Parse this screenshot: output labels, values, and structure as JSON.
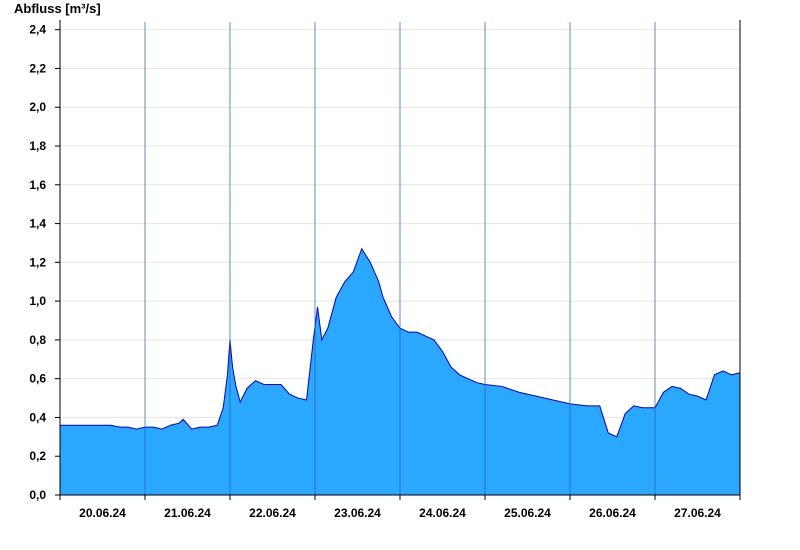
{
  "chart_data": {
    "type": "area",
    "title": "",
    "ylabel": "Abfluss [m³/s]",
    "xlabel": "",
    "ylim": [
      0,
      2.45
    ],
    "yticks": [
      0.0,
      0.2,
      0.4,
      0.6,
      0.8,
      1.0,
      1.2,
      1.4,
      1.6,
      1.8,
      2.0,
      2.2,
      2.4
    ],
    "ytick_labels": [
      "0,0",
      "0,2",
      "0,4",
      "0,6",
      "0,8",
      "1,0",
      "1,2",
      "1,4",
      "1,6",
      "1,8",
      "2,0",
      "2,2",
      "2,4"
    ],
    "xlim": [
      0,
      8
    ],
    "xticks": [
      0,
      1,
      2,
      3,
      4,
      5,
      6,
      7,
      8
    ],
    "day_labels": [
      "20.06.24",
      "21.06.24",
      "22.06.24",
      "23.06.24",
      "24.06.24",
      "25.06.24",
      "26.06.24",
      "27.06.24"
    ],
    "grid": true,
    "fill_color": "#2aa8ff",
    "line_color": "#0000cc",
    "series": [
      {
        "x": [
          0.0,
          0.2,
          0.35,
          0.5,
          0.6,
          0.7,
          0.8,
          0.9,
          1.0,
          1.1,
          1.2,
          1.3,
          1.4,
          1.45,
          1.55,
          1.65,
          1.75,
          1.85,
          1.92,
          1.97,
          2.0,
          2.03,
          2.07,
          2.12,
          2.2,
          2.3,
          2.4,
          2.5,
          2.6,
          2.7,
          2.8,
          2.9,
          2.98,
          3.03,
          3.08,
          3.15,
          3.25,
          3.35,
          3.45,
          3.55,
          3.65,
          3.75,
          3.8,
          3.9,
          4.0,
          4.1,
          4.2,
          4.3,
          4.4,
          4.5,
          4.6,
          4.7,
          4.8,
          4.9,
          5.0,
          5.2,
          5.4,
          5.6,
          5.8,
          6.0,
          6.2,
          6.35,
          6.45,
          6.55,
          6.65,
          6.75,
          6.85,
          7.0,
          7.1,
          7.2,
          7.3,
          7.4,
          7.5,
          7.6,
          7.7,
          7.8,
          7.9,
          8.0
        ],
        "y": [
          0.36,
          0.36,
          0.36,
          0.36,
          0.36,
          0.35,
          0.35,
          0.34,
          0.35,
          0.35,
          0.34,
          0.36,
          0.37,
          0.39,
          0.34,
          0.35,
          0.35,
          0.36,
          0.45,
          0.62,
          0.8,
          0.66,
          0.56,
          0.48,
          0.55,
          0.59,
          0.57,
          0.57,
          0.57,
          0.52,
          0.5,
          0.49,
          0.8,
          0.97,
          0.8,
          0.86,
          1.02,
          1.1,
          1.15,
          1.27,
          1.2,
          1.1,
          1.02,
          0.92,
          0.86,
          0.84,
          0.84,
          0.82,
          0.8,
          0.74,
          0.66,
          0.62,
          0.6,
          0.58,
          0.57,
          0.56,
          0.53,
          0.51,
          0.49,
          0.47,
          0.46,
          0.46,
          0.32,
          0.3,
          0.42,
          0.46,
          0.45,
          0.45,
          0.53,
          0.56,
          0.55,
          0.52,
          0.51,
          0.49,
          0.62,
          0.64,
          0.62,
          0.63
        ]
      }
    ]
  }
}
